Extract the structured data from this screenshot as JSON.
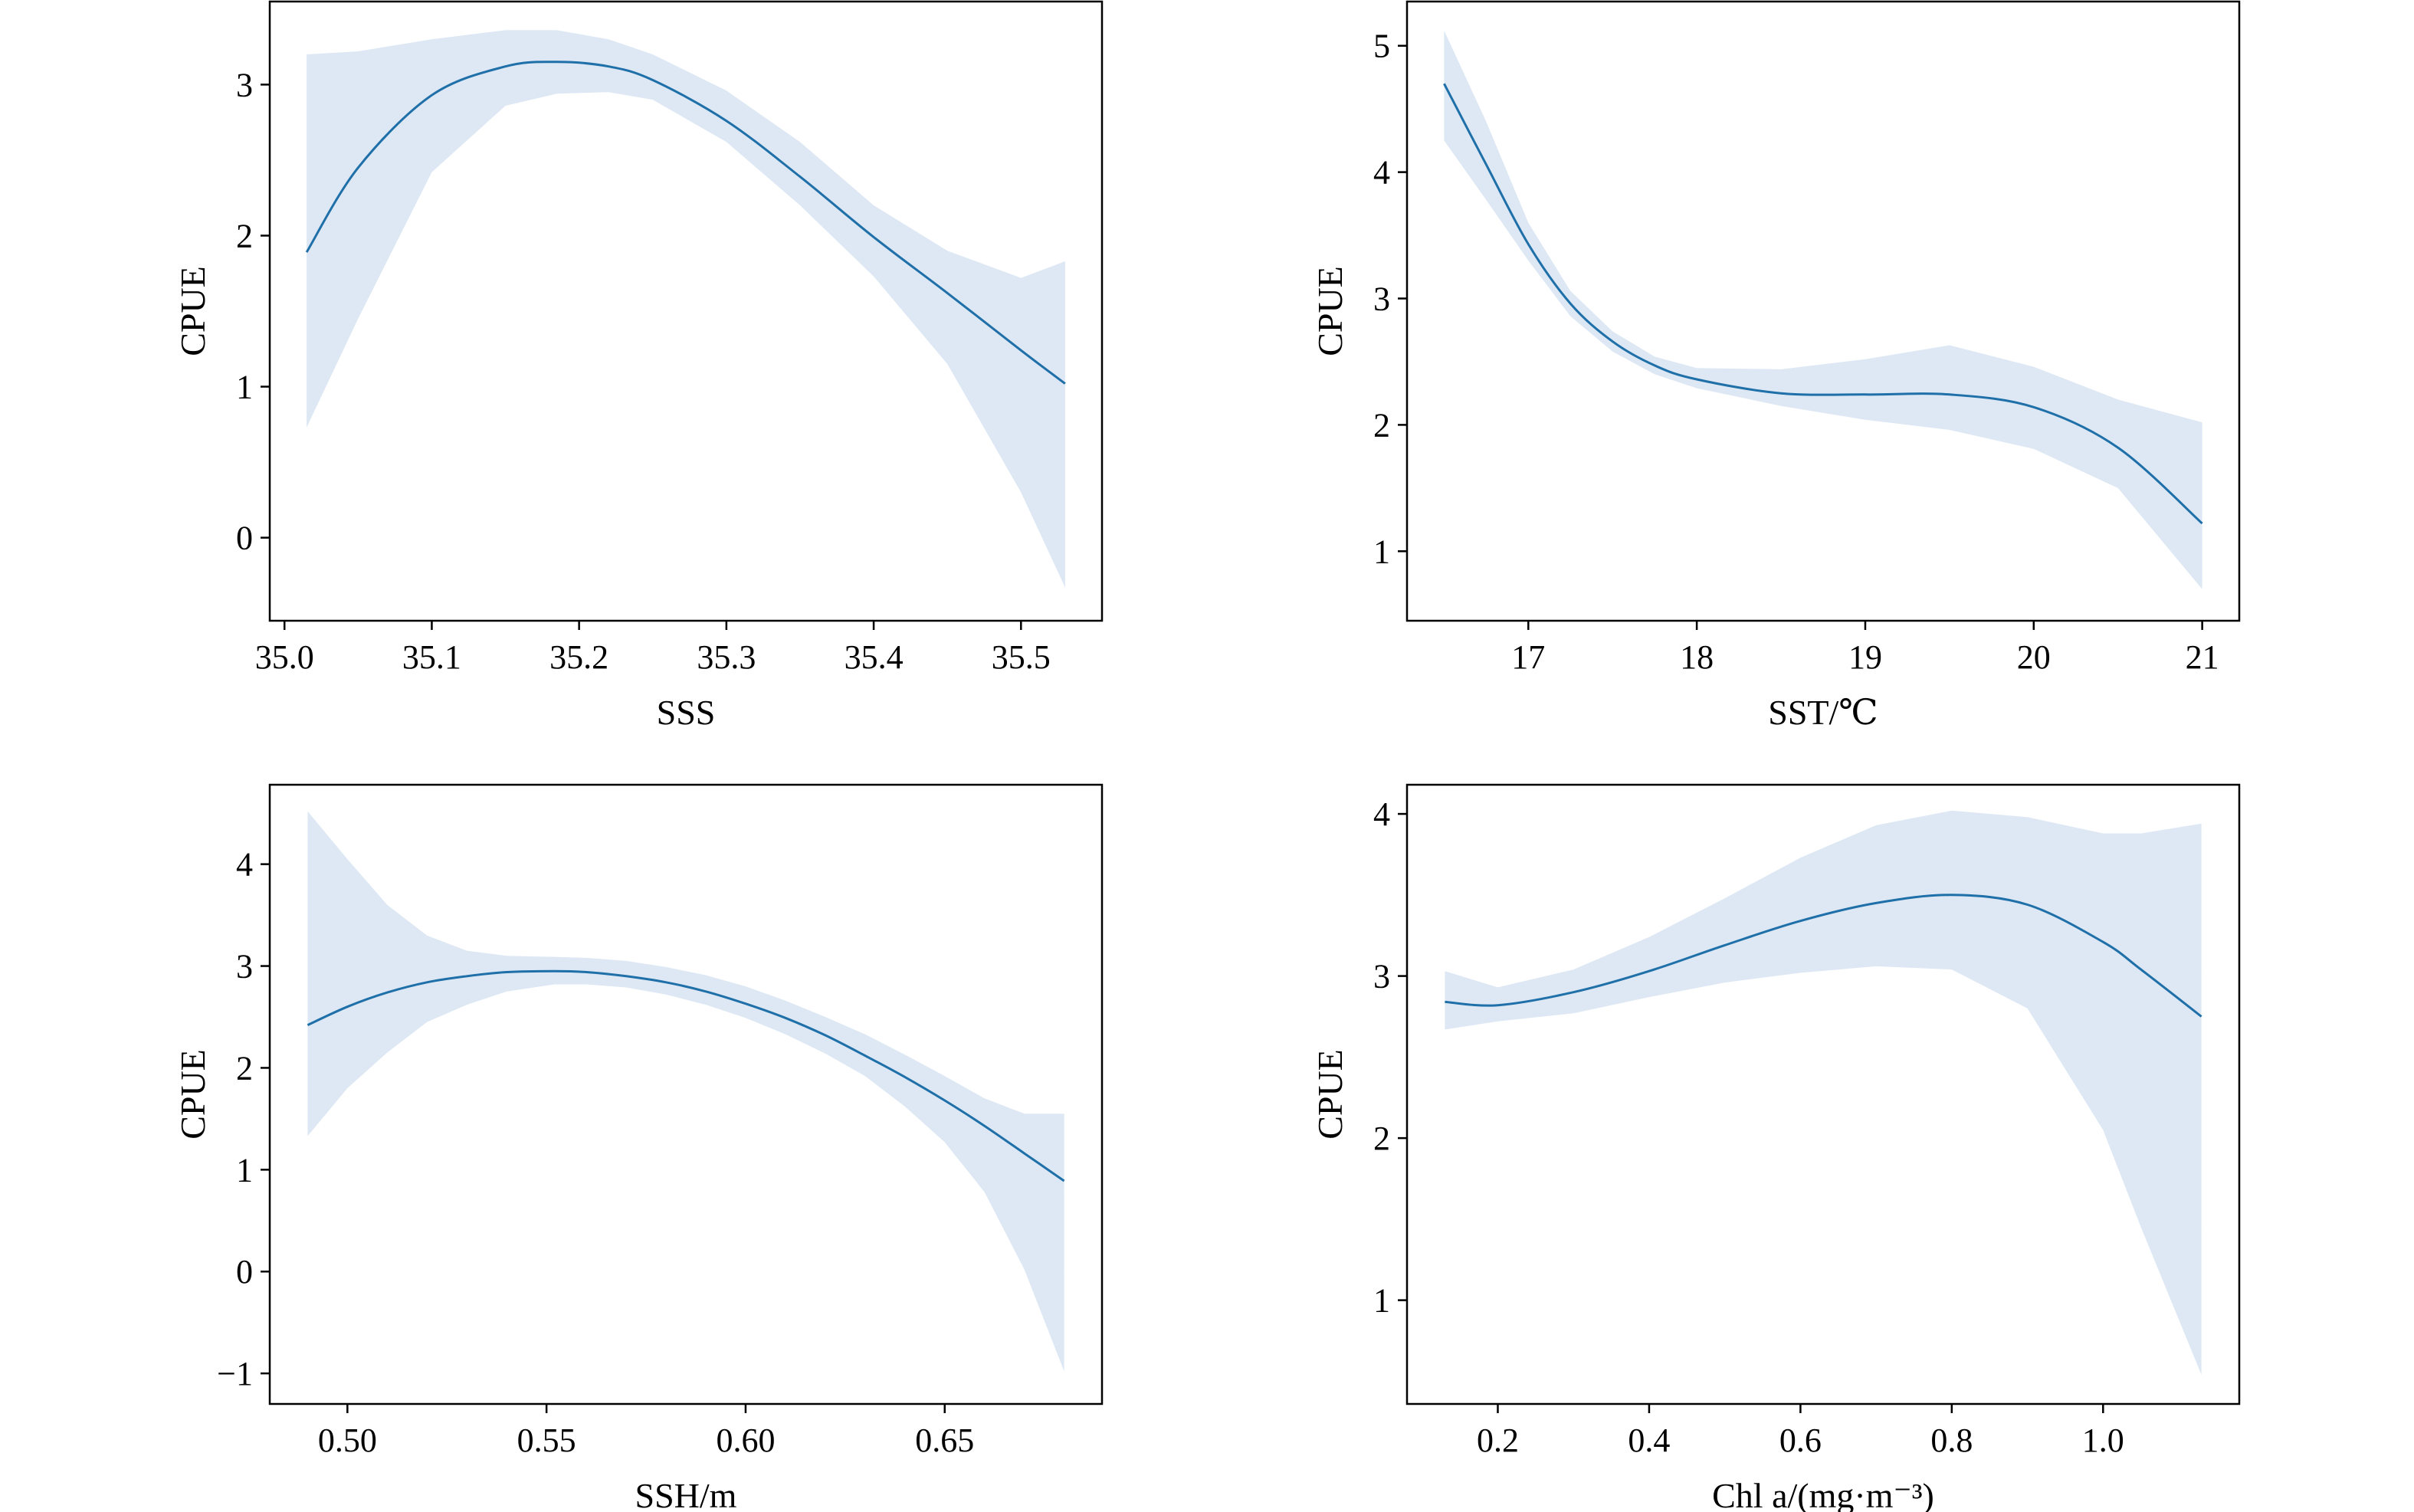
{
  "chart_data": [
    {
      "type": "line",
      "xlabel": "SSS",
      "ylabel": "CPUE",
      "xlim": [
        34.99,
        35.555
      ],
      "ylim": [
        -0.55,
        3.55
      ],
      "xticks": [
        35.0,
        35.1,
        35.2,
        35.3,
        35.4,
        35.5
      ],
      "xtick_labels": [
        "35.0",
        "35.1",
        "35.2",
        "35.3",
        "35.4",
        "35.5"
      ],
      "yticks": [
        0,
        1,
        2,
        3
      ],
      "ytick_labels": [
        "0",
        "1",
        "2",
        "3"
      ],
      "series": [
        {
          "color": "#1f6fa8",
          "x": [
            35.015,
            35.05,
            35.1,
            35.15,
            35.185,
            35.22,
            35.25,
            35.3,
            35.35,
            35.4,
            35.45,
            35.5,
            35.53
          ],
          "y": [
            1.89,
            2.45,
            2.93,
            3.12,
            3.15,
            3.12,
            3.03,
            2.76,
            2.39,
            1.99,
            1.62,
            1.24,
            1.02
          ],
          "lower": [
            0.73,
            1.45,
            2.42,
            2.86,
            2.94,
            2.95,
            2.9,
            2.62,
            2.2,
            1.73,
            1.15,
            0.3,
            -0.33
          ],
          "upper": [
            3.2,
            3.22,
            3.3,
            3.36,
            3.36,
            3.3,
            3.2,
            2.96,
            2.62,
            2.2,
            1.9,
            1.72,
            1.83
          ]
        }
      ],
      "band_color": "#dde8f4",
      "grid": false
    },
    {
      "type": "line",
      "xlabel": "SST/℃",
      "ylabel": "CPUE",
      "xlim": [
        16.28,
        21.22
      ],
      "ylim": [
        0.45,
        5.35
      ],
      "xticks": [
        17,
        18,
        19,
        20,
        21
      ],
      "xtick_labels": [
        "17",
        "18",
        "19",
        "20",
        "21"
      ],
      "yticks": [
        1,
        2,
        3,
        4,
        5
      ],
      "ytick_labels": [
        "1",
        "2",
        "3",
        "4",
        "5"
      ],
      "series": [
        {
          "color": "#1f6fa8",
          "x": [
            16.5,
            16.75,
            17.0,
            17.25,
            17.5,
            17.75,
            18.0,
            18.5,
            19.0,
            19.5,
            20.0,
            20.5,
            21.0
          ],
          "y": [
            4.7,
            4.06,
            3.43,
            2.96,
            2.66,
            2.47,
            2.36,
            2.25,
            2.24,
            2.24,
            2.14,
            1.82,
            1.22
          ],
          "lower": [
            4.25,
            3.78,
            3.3,
            2.86,
            2.58,
            2.4,
            2.29,
            2.15,
            2.04,
            1.96,
            1.81,
            1.5,
            0.7
          ],
          "upper": [
            5.12,
            4.4,
            3.6,
            3.06,
            2.74,
            2.54,
            2.45,
            2.44,
            2.52,
            2.63,
            2.46,
            2.2,
            2.02
          ]
        }
      ],
      "band_color": "#dde8f4",
      "grid": false
    },
    {
      "type": "line",
      "xlabel": "SSH/m",
      "ylabel": "CPUE",
      "xlim": [
        0.4805,
        0.6895
      ],
      "ylim": [
        -1.3,
        4.78
      ],
      "xticks": [
        0.5,
        0.55,
        0.6,
        0.65
      ],
      "xtick_labels": [
        "0.50",
        "0.55",
        "0.60",
        "0.65"
      ],
      "yticks": [
        -1,
        0,
        1,
        2,
        3,
        4
      ],
      "ytick_labels": [
        "−1",
        "0",
        "1",
        "2",
        "3",
        "4"
      ],
      "series": [
        {
          "color": "#1f6fa8",
          "x": [
            0.49,
            0.5,
            0.51,
            0.52,
            0.53,
            0.54,
            0.552,
            0.56,
            0.57,
            0.58,
            0.59,
            0.6,
            0.61,
            0.62,
            0.63,
            0.64,
            0.65,
            0.66,
            0.67,
            0.68
          ],
          "y": [
            2.42,
            2.6,
            2.74,
            2.84,
            2.9,
            2.94,
            2.95,
            2.94,
            2.9,
            2.84,
            2.75,
            2.63,
            2.49,
            2.32,
            2.12,
            1.91,
            1.68,
            1.43,
            1.16,
            0.89
          ],
          "lower": [
            1.33,
            1.8,
            2.15,
            2.45,
            2.62,
            2.75,
            2.82,
            2.82,
            2.79,
            2.72,
            2.62,
            2.49,
            2.33,
            2.14,
            1.92,
            1.62,
            1.27,
            0.78,
            0.02,
            -0.98
          ],
          "upper": [
            4.52,
            4.05,
            3.6,
            3.3,
            3.15,
            3.1,
            3.09,
            3.08,
            3.05,
            2.99,
            2.91,
            2.8,
            2.66,
            2.5,
            2.33,
            2.13,
            1.92,
            1.7,
            1.55,
            1.55
          ]
        }
      ],
      "band_color": "#dde8f4",
      "grid": false
    },
    {
      "type": "line",
      "xlabel": "Chl a/(mg·m⁻³)",
      "ylabel": "CPUE",
      "xlim": [
        0.08,
        1.18
      ],
      "ylim": [
        0.36,
        4.18
      ],
      "xticks": [
        0.2,
        0.4,
        0.6,
        0.8,
        1.0
      ],
      "xtick_labels": [
        "0.2",
        "0.4",
        "0.6",
        "0.8",
        "1.0"
      ],
      "yticks": [
        1,
        2,
        3,
        4
      ],
      "ytick_labels": [
        "1",
        "2",
        "3",
        "4"
      ],
      "series": [
        {
          "color": "#1f6fa8",
          "x": [
            0.13,
            0.2,
            0.3,
            0.4,
            0.5,
            0.6,
            0.7,
            0.8,
            0.9,
            1.0,
            1.05,
            1.13
          ],
          "y": [
            2.84,
            2.82,
            2.9,
            3.03,
            3.19,
            3.34,
            3.45,
            3.5,
            3.44,
            3.21,
            3.04,
            2.75
          ],
          "lower": [
            2.67,
            2.72,
            2.77,
            2.87,
            2.96,
            3.02,
            3.06,
            3.04,
            2.8,
            2.05,
            1.45,
            0.54
          ],
          "upper": [
            3.03,
            2.93,
            3.04,
            3.24,
            3.48,
            3.73,
            3.93,
            4.02,
            3.98,
            3.88,
            3.88,
            3.94
          ]
        }
      ],
      "band_color": "#dde8f4",
      "grid": false
    }
  ]
}
